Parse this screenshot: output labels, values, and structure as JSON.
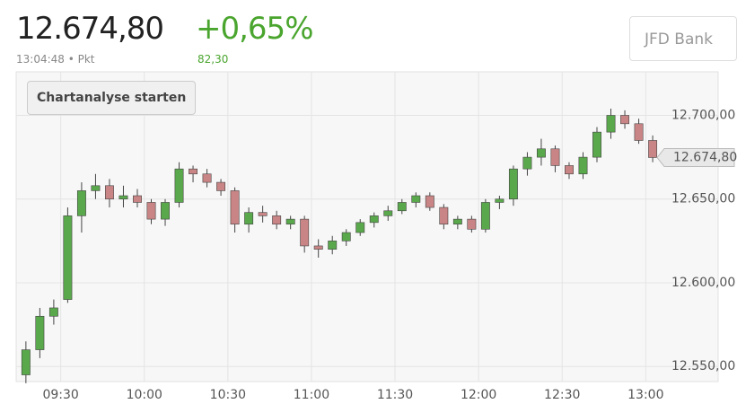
{
  "header": {
    "price": "12.674,80",
    "change_pct": "+0,65%",
    "time": "13:04:48",
    "unit": "Pkt",
    "change_abs": "82,30",
    "broker": "JFD Bank"
  },
  "button": "Chartanalyse starten",
  "chart_data": {
    "type": "candlestick",
    "x": [
      "09:15",
      "09:20",
      "09:25",
      "09:30",
      "09:35",
      "09:40",
      "09:45",
      "09:50",
      "09:55",
      "10:00",
      "10:05",
      "10:10",
      "10:15",
      "10:20",
      "10:25",
      "10:30",
      "10:35",
      "10:40",
      "10:45",
      "10:50",
      "10:55",
      "11:00",
      "11:05",
      "11:10",
      "11:15",
      "11:20",
      "11:25",
      "11:30",
      "11:35",
      "11:40",
      "11:45",
      "11:50",
      "11:55",
      "12:00",
      "12:05",
      "12:10",
      "12:15",
      "12:20",
      "12:25",
      "12:30",
      "12:35",
      "12:40",
      "12:45",
      "12:50",
      "12:55",
      "13:00"
    ],
    "open": [
      12545,
      12560,
      12580,
      12590,
      12640,
      12655,
      12658,
      12650,
      12652,
      12648,
      12638,
      12648,
      12668,
      12665,
      12660,
      12655,
      12635,
      12642,
      12640,
      12635,
      12638,
      12622,
      12620,
      12625,
      12630,
      12636,
      12640,
      12643,
      12648,
      12652,
      12645,
      12635,
      12638,
      12632,
      12648,
      12650,
      12668,
      12675,
      12680,
      12670,
      12665,
      12675,
      12690,
      12700,
      12695,
      12685
    ],
    "high": [
      12565,
      12585,
      12590,
      12645,
      12660,
      12665,
      12662,
      12658,
      12656,
      12650,
      12650,
      12672,
      12670,
      12668,
      12662,
      12657,
      12645,
      12646,
      12643,
      12640,
      12640,
      12626,
      12628,
      12632,
      12638,
      12642,
      12646,
      12650,
      12654,
      12654,
      12647,
      12640,
      12640,
      12650,
      12652,
      12670,
      12678,
      12686,
      12682,
      12672,
      12678,
      12693,
      12704,
      12703,
      12698,
      12688
    ],
    "low": [
      12540,
      12555,
      12575,
      12588,
      12630,
      12650,
      12645,
      12645,
      12645,
      12635,
      12634,
      12645,
      12660,
      12657,
      12652,
      12630,
      12630,
      12636,
      12632,
      12632,
      12618,
      12615,
      12617,
      12622,
      12628,
      12633,
      12637,
      12641,
      12645,
      12643,
      12632,
      12632,
      12630,
      12630,
      12644,
      12646,
      12664,
      12670,
      12666,
      12662,
      12662,
      12672,
      12686,
      12692,
      12683,
      12672
    ],
    "close": [
      12560,
      12580,
      12585,
      12640,
      12655,
      12658,
      12650,
      12652,
      12648,
      12638,
      12648,
      12668,
      12665,
      12660,
      12655,
      12635,
      12642,
      12640,
      12635,
      12638,
      12622,
      12620,
      12625,
      12630,
      12636,
      12640,
      12643,
      12648,
      12652,
      12645,
      12635,
      12638,
      12632,
      12648,
      12650,
      12668,
      12675,
      12680,
      12670,
      12665,
      12675,
      12690,
      12700,
      12695,
      12685,
      12674.8
    ],
    "up_color": "#5aa84c",
    "down_color": "#c98585",
    "xlim": [
      "09:14",
      "13:26"
    ],
    "xticks": [
      "09:30",
      "10:00",
      "10:30",
      "11:00",
      "11:30",
      "12:00",
      "12:30",
      "13:00"
    ],
    "ylim": [
      12541,
      12726
    ],
    "yticks": [
      {
        "value": 12550,
        "label": "12.550,00"
      },
      {
        "value": 12600,
        "label": "12.600,00"
      },
      {
        "value": 12650,
        "label": "12.650,00"
      },
      {
        "value": 12700,
        "label": "12.700,00"
      }
    ],
    "grid": true
  }
}
